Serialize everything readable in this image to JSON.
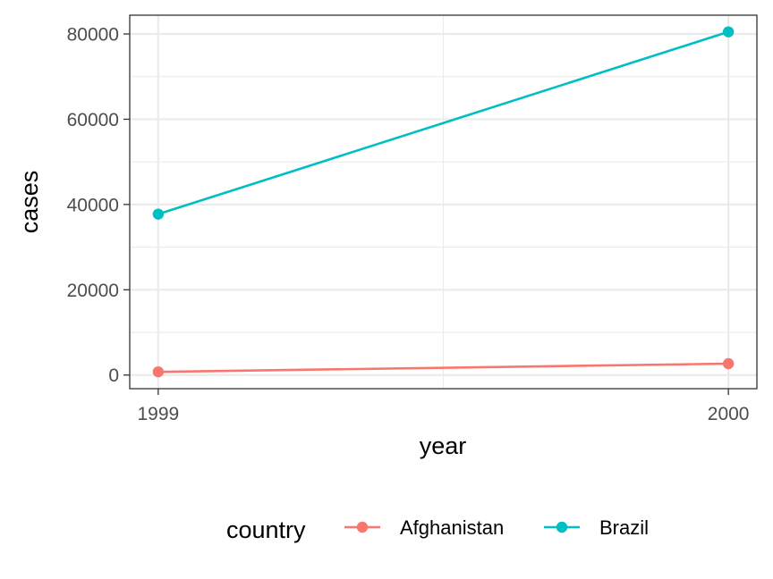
{
  "chart_data": {
    "type": "line",
    "x": [
      1999,
      2000
    ],
    "x_tick_labels": [
      "1999",
      "2000"
    ],
    "xlim": [
      1998.95,
      2000.05
    ],
    "y_ticks": [
      0,
      20000,
      40000,
      60000,
      80000
    ],
    "y_tick_labels": [
      "0",
      "20000",
      "40000",
      "60000",
      "80000"
    ],
    "ylim": [
      -3200,
      84400
    ],
    "xlabel": "year",
    "ylabel": "cases",
    "grid": true,
    "legend": {
      "title": "country",
      "position": "bottom"
    },
    "series": [
      {
        "name": "Afghanistan",
        "values": [
          745,
          2666
        ],
        "color": "#F8766D"
      },
      {
        "name": "Brazil",
        "values": [
          37737,
          80488
        ],
        "color": "#00BFC4"
      }
    ]
  }
}
